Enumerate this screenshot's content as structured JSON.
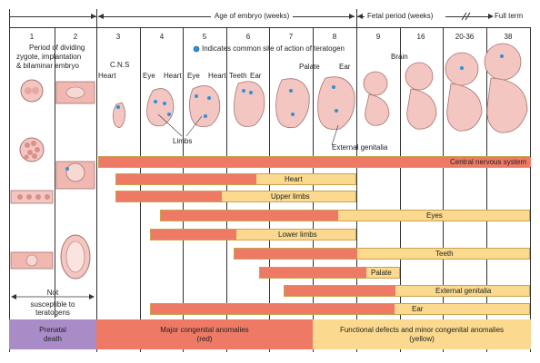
{
  "header": {
    "age_of_embryo": "Age of embryo (weeks)",
    "fetal_period": "Fetal period (weeks)",
    "full_term": "Full term",
    "weeks": [
      "1",
      "2",
      "3",
      "4",
      "5",
      "6",
      "7",
      "8",
      "9",
      "16",
      "20-36",
      "38"
    ]
  },
  "early_period": {
    "lines": [
      "Period of dividing",
      "zygote, implantation",
      "& bilaminar embryo"
    ]
  },
  "legend": {
    "teratogen_site": "Indicates common site of action of teratogen"
  },
  "labels": {
    "cns": "C.N.S",
    "heart_w3": "Heart",
    "eye_w4": "Eye",
    "heart_w4": "Heart",
    "eye_w5": "Eye",
    "heart_w5": "Heart",
    "teeth": "Teeth",
    "ear_w6": "Ear",
    "palate": "Palate",
    "ear_w8": "Ear",
    "brain": "Brain",
    "limbs": "Limbs",
    "external_genitalia": "External genitalia"
  },
  "not_susceptible": [
    "Not",
    "susceptible to",
    "teratogens"
  ],
  "bars": [
    {
      "label": "Central nervous system"
    },
    {
      "label": "Heart"
    },
    {
      "label": "Upper limbs"
    },
    {
      "label": "Eyes"
    },
    {
      "label": "Lower limbs"
    },
    {
      "label": "Teeth"
    },
    {
      "label": "Palate"
    },
    {
      "label": "External genitalia"
    },
    {
      "label": "Ear"
    }
  ],
  "footer": {
    "prenatal_death": [
      "Prenatal",
      "death"
    ],
    "major": [
      "Major congenital anomalies",
      "(red)"
    ],
    "functional": [
      "Functional defects and minor congenital anomalies",
      "(yellow)"
    ]
  },
  "colors": {
    "major_red": "#ee7a66",
    "minor_yellow": "#fbd98e",
    "prenatal_purple": "#a98bc7",
    "teratogen_dot": "#2f8fd8",
    "embryo_pink": "#f3c6c2"
  }
}
